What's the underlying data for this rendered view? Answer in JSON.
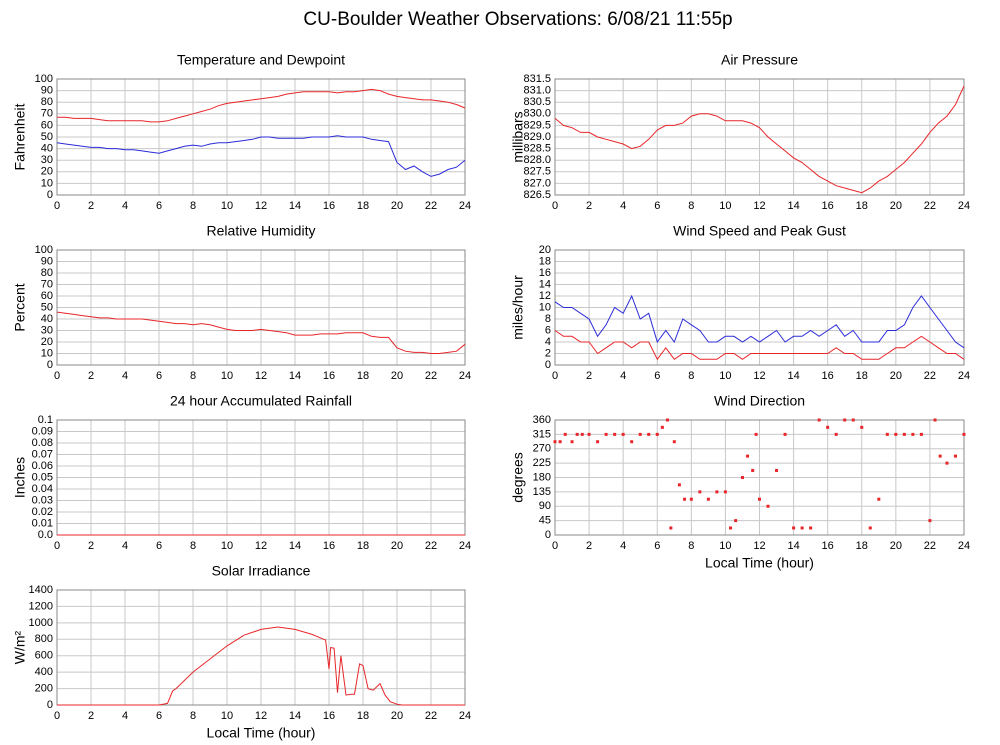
{
  "title": "CU-Boulder Weather Observations: 6/08/21 11:55p",
  "chart_data": [
    {
      "type": "line",
      "title": "Temperature and Dewpoint",
      "y_label": "Fahrenheit",
      "xlim": [
        0,
        24
      ],
      "xticks": [
        0,
        2,
        4,
        6,
        8,
        10,
        12,
        14,
        16,
        18,
        20,
        22,
        24
      ],
      "ylim": [
        0,
        100
      ],
      "yticks": [
        0,
        10,
        20,
        30,
        40,
        50,
        60,
        70,
        80,
        90,
        100
      ],
      "grid": true,
      "x": [
        0,
        0.5,
        1,
        1.5,
        2,
        2.5,
        3,
        3.5,
        4,
        4.5,
        5,
        5.5,
        6,
        6.5,
        7,
        7.5,
        8,
        8.5,
        9,
        9.5,
        10,
        10.5,
        11,
        11.5,
        12,
        12.5,
        13,
        13.5,
        14,
        14.5,
        15,
        15.5,
        16,
        16.5,
        17,
        17.5,
        18,
        18.5,
        19,
        19.5,
        20,
        20.5,
        21,
        21.5,
        22,
        22.5,
        23,
        23.5,
        24
      ],
      "series": [
        {
          "color": "#e8262a",
          "values": [
            67,
            67,
            66,
            66,
            66,
            65,
            64,
            64,
            64,
            64,
            64,
            63,
            63,
            64,
            66,
            68,
            70,
            72,
            74,
            77,
            79,
            80,
            81,
            82,
            83,
            84,
            85,
            87,
            88,
            89,
            89,
            89,
            89,
            88,
            89,
            89,
            90,
            91,
            90,
            87,
            85,
            84,
            83,
            82,
            82,
            81,
            80,
            78,
            75
          ]
        },
        {
          "color": "#2b2bd9",
          "values": [
            45,
            44,
            43,
            42,
            41,
            41,
            40,
            40,
            39,
            39,
            38,
            37,
            36,
            38,
            40,
            42,
            43,
            42,
            44,
            45,
            45,
            46,
            47,
            48,
            50,
            50,
            49,
            49,
            49,
            49,
            50,
            50,
            50,
            51,
            50,
            50,
            50,
            48,
            47,
            46,
            28,
            22,
            25,
            20,
            16,
            18,
            22,
            24,
            30
          ]
        }
      ]
    },
    {
      "type": "line",
      "title": "Air Pressure",
      "y_label": "millibars",
      "xlim": [
        0,
        24
      ],
      "xticks": [
        0,
        2,
        4,
        6,
        8,
        10,
        12,
        14,
        16,
        18,
        20,
        22,
        24
      ],
      "ylim": [
        826.5,
        831.5
      ],
      "yticks": [
        826.5,
        {
          "value": 827,
          "label": "827.0"
        },
        827.5,
        {
          "value": 828,
          "label": "828.0"
        },
        828.5,
        {
          "value": 829,
          "label": "829.0"
        },
        829.5,
        {
          "value": 830,
          "label": "830.0"
        },
        830.5,
        {
          "value": 831,
          "label": "831.0"
        },
        831.5
      ],
      "grid": true,
      "x": [
        0,
        0.5,
        1,
        1.5,
        2,
        2.5,
        3,
        3.5,
        4,
        4.5,
        5,
        5.5,
        6,
        6.5,
        7,
        7.5,
        8,
        8.5,
        9,
        9.5,
        10,
        10.5,
        11,
        11.5,
        12,
        12.5,
        13,
        13.5,
        14,
        14.5,
        15,
        15.5,
        16,
        16.5,
        17,
        17.5,
        18,
        18.5,
        19,
        19.5,
        20,
        20.5,
        21,
        21.5,
        22,
        22.5,
        23,
        23.5,
        24
      ],
      "series": [
        {
          "color": "#e8262a",
          "values": [
            829.8,
            829.5,
            829.4,
            829.2,
            829.2,
            829.0,
            828.9,
            828.8,
            828.7,
            828.5,
            828.6,
            828.9,
            829.3,
            829.5,
            829.5,
            829.6,
            829.9,
            830.0,
            830.0,
            829.9,
            829.7,
            829.7,
            829.7,
            829.6,
            829.4,
            829.0,
            828.7,
            828.4,
            828.1,
            827.9,
            827.6,
            827.3,
            827.1,
            826.9,
            826.8,
            826.7,
            826.6,
            826.8,
            827.1,
            827.3,
            827.6,
            827.9,
            828.3,
            828.7,
            829.2,
            829.6,
            829.9,
            830.4,
            831.2
          ]
        }
      ]
    },
    {
      "type": "line",
      "title": "Relative Humidity",
      "y_label": "Percent",
      "xlim": [
        0,
        24
      ],
      "xticks": [
        0,
        2,
        4,
        6,
        8,
        10,
        12,
        14,
        16,
        18,
        20,
        22,
        24
      ],
      "ylim": [
        0,
        100
      ],
      "yticks": [
        0,
        10,
        20,
        30,
        40,
        50,
        60,
        70,
        80,
        90,
        100
      ],
      "grid": true,
      "x": [
        0,
        0.5,
        1,
        1.5,
        2,
        2.5,
        3,
        3.5,
        4,
        4.5,
        5,
        5.5,
        6,
        6.5,
        7,
        7.5,
        8,
        8.5,
        9,
        9.5,
        10,
        10.5,
        11,
        11.5,
        12,
        12.5,
        13,
        13.5,
        14,
        14.5,
        15,
        15.5,
        16,
        16.5,
        17,
        17.5,
        18,
        18.5,
        19,
        19.5,
        20,
        20.5,
        21,
        21.5,
        22,
        22.5,
        23,
        23.5,
        24
      ],
      "series": [
        {
          "color": "#e8262a",
          "values": [
            46,
            45,
            44,
            43,
            42,
            41,
            41,
            40,
            40,
            40,
            40,
            39,
            38,
            37,
            36,
            36,
            35,
            36,
            35,
            33,
            31,
            30,
            30,
            30,
            31,
            30,
            29,
            28,
            26,
            26,
            26,
            27,
            27,
            27,
            28,
            28,
            28,
            25,
            24,
            24,
            15,
            12,
            11,
            11,
            10,
            10,
            11,
            12,
            18
          ]
        }
      ]
    },
    {
      "type": "line",
      "title": "Wind Speed and Peak Gust",
      "y_label": "miles/hour",
      "xlim": [
        0,
        24
      ],
      "xticks": [
        0,
        2,
        4,
        6,
        8,
        10,
        12,
        14,
        16,
        18,
        20,
        22,
        24
      ],
      "ylim": [
        0,
        20
      ],
      "yticks": [
        0,
        2,
        4,
        6,
        8,
        10,
        12,
        14,
        16,
        18,
        20
      ],
      "grid": true,
      "x": [
        0,
        0.5,
        1,
        1.5,
        2,
        2.5,
        3,
        3.5,
        4,
        4.5,
        5,
        5.5,
        6,
        6.5,
        7,
        7.5,
        8,
        8.5,
        9,
        9.5,
        10,
        10.5,
        11,
        11.5,
        12,
        12.5,
        13,
        13.5,
        14,
        14.5,
        15,
        15.5,
        16,
        16.5,
        17,
        17.5,
        18,
        18.5,
        19,
        19.5,
        20,
        20.5,
        21,
        21.5,
        22,
        22.5,
        23,
        23.5,
        24
      ],
      "series": [
        {
          "color": "#2b2bd9",
          "values": [
            11,
            10,
            10,
            9,
            8,
            5,
            7,
            10,
            9,
            12,
            8,
            9,
            4,
            6,
            4,
            8,
            7,
            6,
            4,
            4,
            5,
            5,
            4,
            5,
            4,
            5,
            6,
            4,
            5,
            5,
            6,
            5,
            6,
            7,
            5,
            6,
            4,
            4,
            4,
            6,
            6,
            7,
            10,
            12,
            10,
            8,
            6,
            4,
            3
          ]
        },
        {
          "color": "#e8262a",
          "values": [
            6,
            5,
            5,
            4,
            4,
            2,
            3,
            4,
            4,
            3,
            4,
            4,
            1,
            3,
            1,
            2,
            2,
            1,
            1,
            1,
            2,
            2,
            1,
            2,
            2,
            2,
            2,
            2,
            2,
            2,
            2,
            2,
            2,
            3,
            2,
            2,
            1,
            1,
            1,
            2,
            3,
            3,
            4,
            5,
            4,
            3,
            2,
            2,
            1
          ]
        }
      ]
    },
    {
      "type": "line",
      "title": "24 hour Accumulated Rainfall",
      "y_label": "Inches",
      "xlim": [
        0,
        24
      ],
      "xticks": [
        0,
        2,
        4,
        6,
        8,
        10,
        12,
        14,
        16,
        18,
        20,
        22,
        24
      ],
      "ylim": [
        0,
        0.1
      ],
      "yticks": [
        {
          "value": 0,
          "label": "0.0"
        },
        0.01,
        0.02,
        0.03,
        0.04,
        0.05,
        0.06,
        0.07,
        0.08,
        0.09,
        0.1
      ],
      "grid": true,
      "x": [
        0,
        24
      ],
      "series": [
        {
          "color": "#e8262a",
          "values": [
            0,
            0
          ]
        }
      ]
    },
    {
      "type": "scatter",
      "title": "Wind Direction",
      "y_label": "degrees",
      "x_label": "Local Time (hour)",
      "xlim": [
        0,
        24
      ],
      "xticks": [
        0,
        2,
        4,
        6,
        8,
        10,
        12,
        14,
        16,
        18,
        20,
        22,
        24
      ],
      "ylim": [
        0,
        360
      ],
      "yticks": [
        0,
        45,
        90,
        135,
        180,
        225,
        270,
        315,
        360
      ],
      "grid": true,
      "x": [
        0,
        0.3,
        0.6,
        1,
        1.3,
        1.6,
        2,
        2.5,
        3,
        3.5,
        4,
        4.5,
        5,
        5.5,
        6,
        6.3,
        6.6,
        6.8,
        7,
        7.3,
        7.6,
        8,
        8.5,
        9,
        9.5,
        10,
        10.3,
        10.6,
        11,
        11.3,
        11.6,
        11.8,
        12,
        12.5,
        13,
        13.5,
        14,
        14.5,
        15,
        15.5,
        16,
        16.5,
        17,
        17.5,
        18,
        18.5,
        19,
        19.5,
        20,
        20.5,
        21,
        21.5,
        22,
        22.3,
        22.6,
        23,
        23.5,
        24
      ],
      "series": [
        {
          "color": "#e8262a",
          "values": [
            292,
            292,
            315,
            292,
            315,
            315,
            315,
            292,
            315,
            315,
            315,
            292,
            315,
            315,
            315,
            337,
            360,
            22,
            292,
            157,
            112,
            112,
            135,
            112,
            135,
            135,
            22,
            45,
            180,
            247,
            202,
            315,
            112,
            90,
            202,
            315,
            22,
            22,
            22,
            360,
            337,
            315,
            360,
            360,
            337,
            22,
            112,
            315,
            315,
            315,
            315,
            315,
            45,
            360,
            247,
            225,
            247,
            315
          ]
        }
      ]
    },
    {
      "type": "line",
      "title": "Solar Irradiance",
      "y_label": "W/m²",
      "x_label": "Local Time (hour)",
      "xlim": [
        0,
        24
      ],
      "xticks": [
        0,
        2,
        4,
        6,
        8,
        10,
        12,
        14,
        16,
        18,
        20,
        22,
        24
      ],
      "ylim": [
        0,
        1400
      ],
      "yticks": [
        0,
        200,
        400,
        600,
        800,
        1000,
        1200,
        1400
      ],
      "grid": true,
      "x": [
        0,
        6,
        6.5,
        6.8,
        7,
        8,
        9,
        10,
        11,
        12,
        13,
        14,
        15,
        15.8,
        16,
        16.1,
        16.3,
        16.5,
        16.7,
        17,
        17.3,
        17.5,
        17.8,
        18,
        18.3,
        18.6,
        19,
        19.3,
        19.6,
        20,
        20.3,
        24
      ],
      "series": [
        {
          "color": "#e8262a",
          "values": [
            0,
            0,
            20,
            170,
            200,
            400,
            560,
            720,
            850,
            920,
            950,
            920,
            860,
            790,
            440,
            700,
            690,
            150,
            600,
            120,
            130,
            130,
            500,
            480,
            200,
            180,
            260,
            120,
            40,
            10,
            0,
            0
          ]
        }
      ]
    }
  ]
}
